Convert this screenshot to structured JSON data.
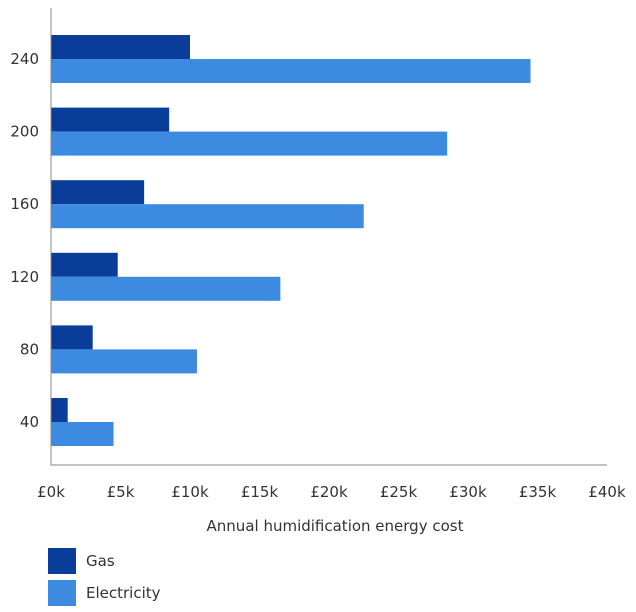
{
  "chart_data": {
    "type": "bar",
    "orientation": "horizontal",
    "categories": [
      "40",
      "80",
      "120",
      "160",
      "200",
      "240"
    ],
    "series": [
      {
        "name": "Gas",
        "color": "#0a3d99",
        "values": [
          1.2,
          3.0,
          4.8,
          6.7,
          8.5,
          10.0
        ]
      },
      {
        "name": "Electricity",
        "color": "#3d8be0",
        "values": [
          4.5,
          10.5,
          16.5,
          22.5,
          28.5,
          34.5
        ]
      }
    ],
    "xlabel": "Annual humidification energy cost",
    "ylabel": "",
    "xlim": [
      0,
      40
    ],
    "x_ticks": [
      {
        "value": 0,
        "label": "£0k"
      },
      {
        "value": 5,
        "label": "£5k"
      },
      {
        "value": 10,
        "label": "£10k"
      },
      {
        "value": 15,
        "label": "£15k"
      },
      {
        "value": 20,
        "label": "£20k"
      },
      {
        "value": 25,
        "label": "£25k"
      },
      {
        "value": 30,
        "label": "£30k"
      },
      {
        "value": 35,
        "label": "£35k"
      },
      {
        "value": 40,
        "label": "£40k"
      }
    ],
    "grid": false,
    "legend_position": "bottom-left"
  }
}
